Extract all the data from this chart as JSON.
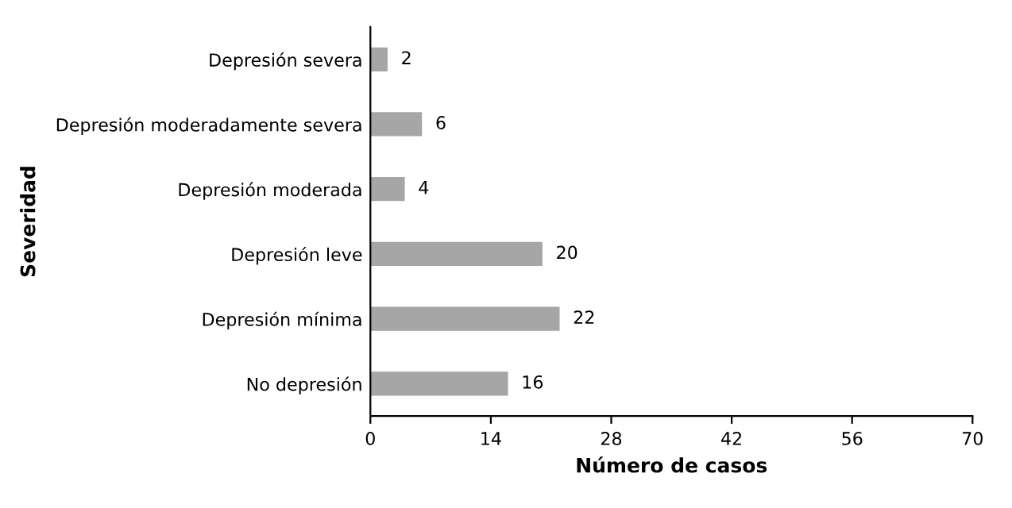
{
  "chart_data": {
    "type": "bar",
    "orientation": "horizontal",
    "xlabel": "Número de casos",
    "ylabel": "Severidad",
    "categories": [
      "Depresión severa",
      "Depresión moderadamente severa",
      "Depresión moderada",
      "Depresión leve",
      "Depresión mínima",
      "No depresión"
    ],
    "values": [
      2,
      6,
      4,
      20,
      22,
      16
    ],
    "color": "#a6a6a6",
    "xlim": [
      0,
      70
    ],
    "xticks": [
      0,
      14,
      28,
      42,
      56,
      70
    ],
    "data_labels": true,
    "grid": false
  }
}
